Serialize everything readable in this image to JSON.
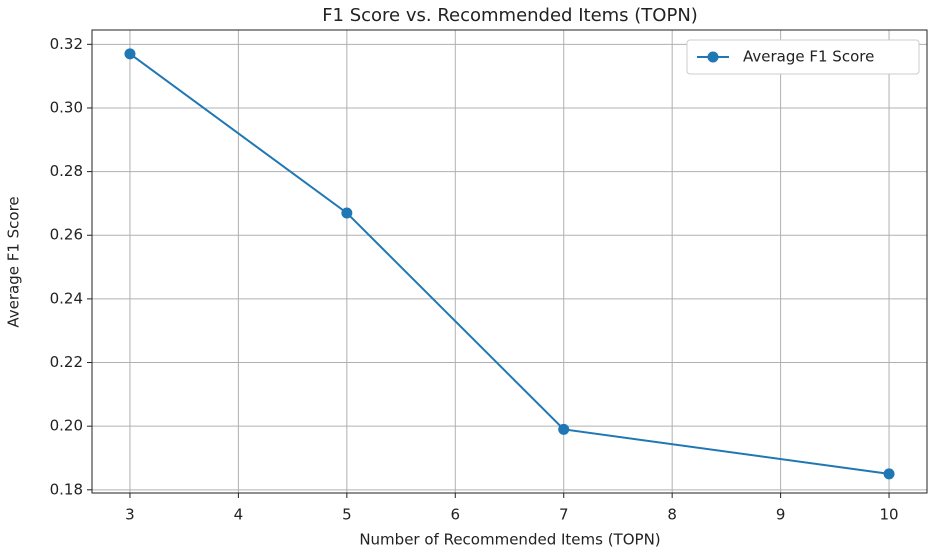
{
  "chart_data": {
    "type": "line",
    "title": "F1 Score vs. Recommended Items (TOPN)",
    "xlabel": "Number of Recommended Items (TOPN)",
    "ylabel": "Average F1 Score",
    "x": [
      3,
      5,
      7,
      10
    ],
    "series": [
      {
        "name": "Average F1 Score",
        "color": "#1f77b4",
        "values": [
          0.317,
          0.267,
          0.199,
          0.185
        ]
      }
    ],
    "xlim": [
      2.65,
      10.35
    ],
    "xticks": [
      3,
      4,
      5,
      6,
      7,
      8,
      9,
      10
    ],
    "ylim": [
      0.179,
      0.3245
    ],
    "yticks": [
      0.18,
      {
        "value": 0.2,
        "label": "0.20"
      },
      0.22,
      0.24,
      0.26,
      0.28,
      {
        "value": 0.3,
        "label": "0.30"
      },
      0.32
    ],
    "grid": true,
    "legend": "upper right"
  }
}
